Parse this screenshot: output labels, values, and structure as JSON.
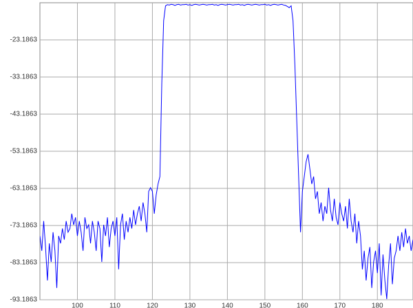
{
  "chart_data": {
    "type": "line",
    "color": "#0000ff",
    "grid": true,
    "xlim": [
      90,
      189.5
    ],
    "ylim": [
      -93.1863,
      -13.1863
    ],
    "xticks": [
      100,
      110,
      120,
      130,
      140,
      150,
      160,
      170,
      180
    ],
    "yticks": [
      -93.1863,
      -83.1863,
      -73.1863,
      -63.1863,
      -53.1863,
      -43.1863,
      -33.1863,
      -23.1863
    ],
    "x": [
      90,
      90.5,
      91,
      91.5,
      92,
      92.5,
      93,
      93.5,
      94,
      94.5,
      95,
      95.5,
      96,
      96.5,
      97,
      97.5,
      98,
      98.5,
      99,
      99.5,
      100,
      100.5,
      101,
      101.5,
      102,
      102.5,
      103,
      103.5,
      104,
      104.5,
      105,
      105.5,
      106,
      106.5,
      107,
      107.5,
      108,
      108.5,
      109,
      109.5,
      110,
      110.5,
      111,
      111.5,
      112,
      112.5,
      113,
      113.5,
      114,
      114.5,
      115,
      115.5,
      116,
      116.5,
      117,
      117.5,
      118,
      118.5,
      119,
      119.5,
      120,
      120.5,
      121,
      121.5,
      122,
      122.5,
      123,
      123.5,
      124,
      124.5,
      125,
      125.5,
      126,
      126.5,
      127,
      127.5,
      128,
      128.5,
      129,
      129.5,
      130,
      130.5,
      131,
      131.5,
      132,
      132.5,
      133,
      133.5,
      134,
      134.5,
      135,
      135.5,
      136,
      136.5,
      137,
      137.5,
      138,
      138.5,
      139,
      139.5,
      140,
      140.5,
      141,
      141.5,
      142,
      142.5,
      143,
      143.5,
      144,
      144.5,
      145,
      145.5,
      146,
      146.5,
      147,
      147.5,
      148,
      148.5,
      149,
      149.5,
      150,
      150.5,
      151,
      151.5,
      152,
      152.5,
      153,
      153.5,
      154,
      154.5,
      155,
      155.5,
      156,
      156.5,
      157,
      157.5,
      158,
      158.5,
      159,
      159.5,
      160,
      160.5,
      161,
      161.5,
      162,
      162.5,
      163,
      163.5,
      164,
      164.5,
      165,
      165.5,
      166,
      166.5,
      167,
      167.5,
      168,
      168.5,
      169,
      169.5,
      170,
      170.5,
      171,
      171.5,
      172,
      172.5,
      173,
      173.5,
      174,
      174.5,
      175,
      175.5,
      176,
      176.5,
      177,
      177.5,
      178,
      178.5,
      179,
      179.5,
      180,
      180.5,
      181,
      181.5,
      182,
      182.5,
      183,
      183.5,
      184,
      184.5,
      185,
      185.5,
      186,
      186.5,
      187,
      187.5,
      188,
      188.5,
      189,
      189.5
    ],
    "values": [
      -76,
      -80,
      -72,
      -79,
      -88,
      -78,
      -83,
      -75,
      -80,
      -90,
      -76,
      -78,
      -74,
      -77,
      -72,
      -75,
      -74,
      -70,
      -73,
      -71,
      -76,
      -72,
      -75,
      -80,
      -71,
      -74,
      -73,
      -78,
      -72,
      -75,
      -80,
      -72,
      -74,
      -83,
      -73,
      -76,
      -71,
      -79,
      -74,
      -72,
      -76,
      -71,
      -85,
      -73,
      -70,
      -77,
      -72,
      -75,
      -71,
      -74,
      -69,
      -73,
      -70,
      -68,
      -72,
      -67,
      -70,
      -75,
      -64,
      -63,
      -64,
      -70,
      -65,
      -62,
      -60,
      -35,
      -18,
      -14,
      -13.7,
      -13.8,
      -13.6,
      -13.7,
      -13.9,
      -13.7,
      -13.6,
      -13.8,
      -13.7,
      -13.7,
      -13.6,
      -13.8,
      -13.7,
      -13.9,
      -13.7,
      -13.6,
      -13.7,
      -13.8,
      -13.7,
      -13.6,
      -13.7,
      -13.8,
      -13.7,
      -13.7,
      -13.6,
      -13.8,
      -13.7,
      -13.9,
      -13.7,
      -13.6,
      -13.7,
      -13.8,
      -13.7,
      -13.6,
      -13.7,
      -13.8,
      -13.7,
      -13.7,
      -13.6,
      -13.8,
      -13.7,
      -13.9,
      -13.7,
      -13.6,
      -13.7,
      -13.8,
      -13.7,
      -13.6,
      -13.7,
      -13.8,
      -13.7,
      -13.7,
      -13.6,
      -13.8,
      -13.7,
      -13.9,
      -13.7,
      -13.6,
      -13.7,
      -13.8,
      -13.7,
      -13.6,
      -13.8,
      -13.9,
      -14.2,
      -14.5,
      -14,
      -18,
      -30,
      -45,
      -60,
      -75,
      -64,
      -60,
      -56,
      -54,
      -58,
      -62,
      -60,
      -66,
      -64,
      -70,
      -67,
      -72,
      -68,
      -70,
      -63,
      -69,
      -72,
      -66,
      -71,
      -73,
      -67,
      -70,
      -72,
      -68,
      -74,
      -66,
      -72,
      -75,
      -70,
      -78,
      -72,
      -76,
      -85,
      -80,
      -88,
      -82,
      -79,
      -90,
      -83,
      -80,
      -86,
      -78,
      -92,
      -81,
      -88,
      -93,
      -84,
      -78,
      -89,
      -82,
      -80,
      -76,
      -80,
      -75,
      -79,
      -74,
      -78,
      -76,
      -80,
      -77
    ]
  }
}
